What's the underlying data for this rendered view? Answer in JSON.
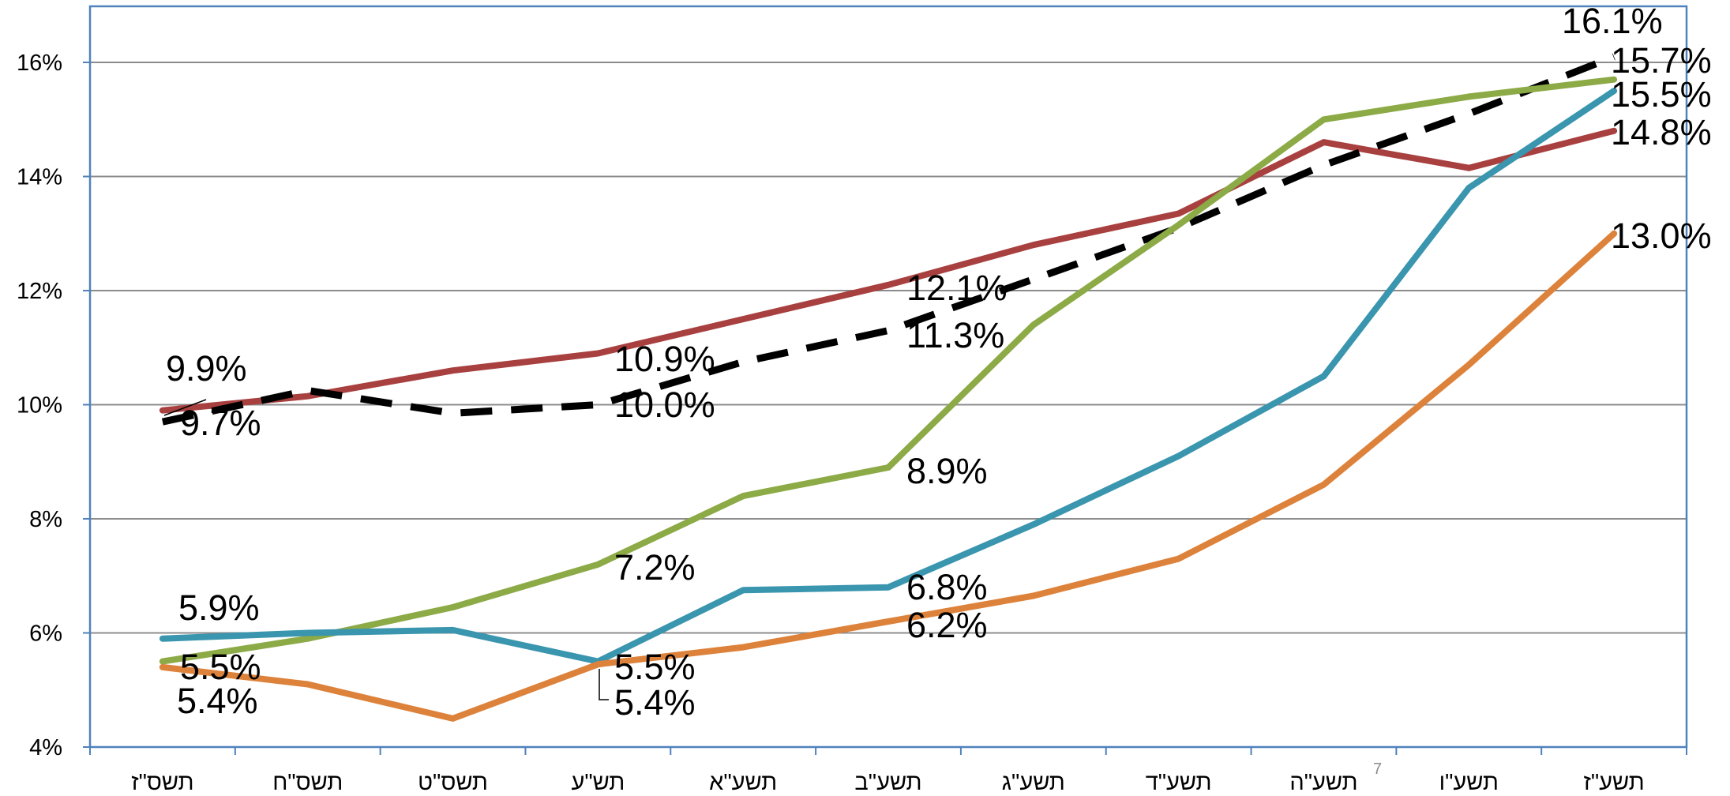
{
  "chart_data": {
    "type": "line",
    "categories": [
      "תשס\"ז",
      "תשס\"ח",
      "תשס\"ט",
      "תש\"ע",
      "תשע\"א",
      "תשע\"ב",
      "תשע\"ג",
      "תשע\"ד",
      "תשע\"ה",
      "תשע\"ו",
      "תשע\"ז"
    ],
    "ylim": [
      4,
      17
    ],
    "yticks": [
      "4%",
      "6%",
      "8%",
      "10%",
      "12%",
      "14%",
      "16%"
    ],
    "ytick_values": [
      4,
      6,
      8,
      10,
      12,
      14,
      16
    ],
    "grid": true,
    "legend": "none",
    "series": [
      {
        "color": "#A8403F",
        "style": "solid",
        "values": [
          9.9,
          10.15,
          10.6,
          10.9,
          11.5,
          12.1,
          12.8,
          13.35,
          14.6,
          14.15,
          14.8
        ],
        "labels": [
          {
            "index": 0,
            "text": "9.9%"
          },
          {
            "index": 3,
            "text": "10.9%"
          },
          {
            "index": 5,
            "text": "12.1%"
          },
          {
            "index": 10,
            "text": "14.8%"
          }
        ]
      },
      {
        "color": "#000000",
        "style": "dashed",
        "values": [
          9.7,
          10.25,
          9.85,
          10.0,
          10.75,
          11.3,
          12.2,
          13.1,
          14.2,
          15.1,
          16.1
        ],
        "labels": [
          {
            "index": 0,
            "text": "9.7%"
          },
          {
            "index": 3,
            "text": "10.0%"
          },
          {
            "index": 5,
            "text": "11.3%"
          },
          {
            "index": 10,
            "text": "16.1%"
          }
        ]
      },
      {
        "color": "#8CAA46",
        "style": "solid",
        "values": [
          5.5,
          5.9,
          6.45,
          7.2,
          8.4,
          8.9,
          11.4,
          13.15,
          15.0,
          15.4,
          15.7
        ],
        "labels": [
          {
            "index": 0,
            "text": "5.5%"
          },
          {
            "index": 3,
            "text": "7.2%"
          },
          {
            "index": 5,
            "text": "8.9%"
          },
          {
            "index": 10,
            "text": "15.7%"
          }
        ]
      },
      {
        "color": "#3A95AE",
        "style": "solid",
        "values": [
          5.9,
          6.0,
          6.05,
          5.5,
          6.75,
          6.8,
          7.9,
          9.1,
          10.5,
          13.8,
          15.5
        ],
        "labels": [
          {
            "index": 0,
            "text": "5.9%"
          },
          {
            "index": 3,
            "text": "5.5%"
          },
          {
            "index": 5,
            "text": "6.8%"
          },
          {
            "index": 10,
            "text": "15.5%"
          }
        ]
      },
      {
        "color": "#DD823B",
        "style": "solid",
        "values": [
          5.4,
          5.1,
          4.5,
          5.45,
          5.75,
          6.2,
          6.65,
          7.3,
          8.6,
          10.7,
          13.0
        ],
        "labels": [
          {
            "index": 0,
            "text": "5.4%"
          },
          {
            "index": 3,
            "text": "5.4%"
          },
          {
            "index": 5,
            "text": "6.2%"
          },
          {
            "index": 10,
            "text": "13.0%"
          }
        ]
      }
    ],
    "annotations": [
      {
        "text": "7"
      }
    ]
  }
}
